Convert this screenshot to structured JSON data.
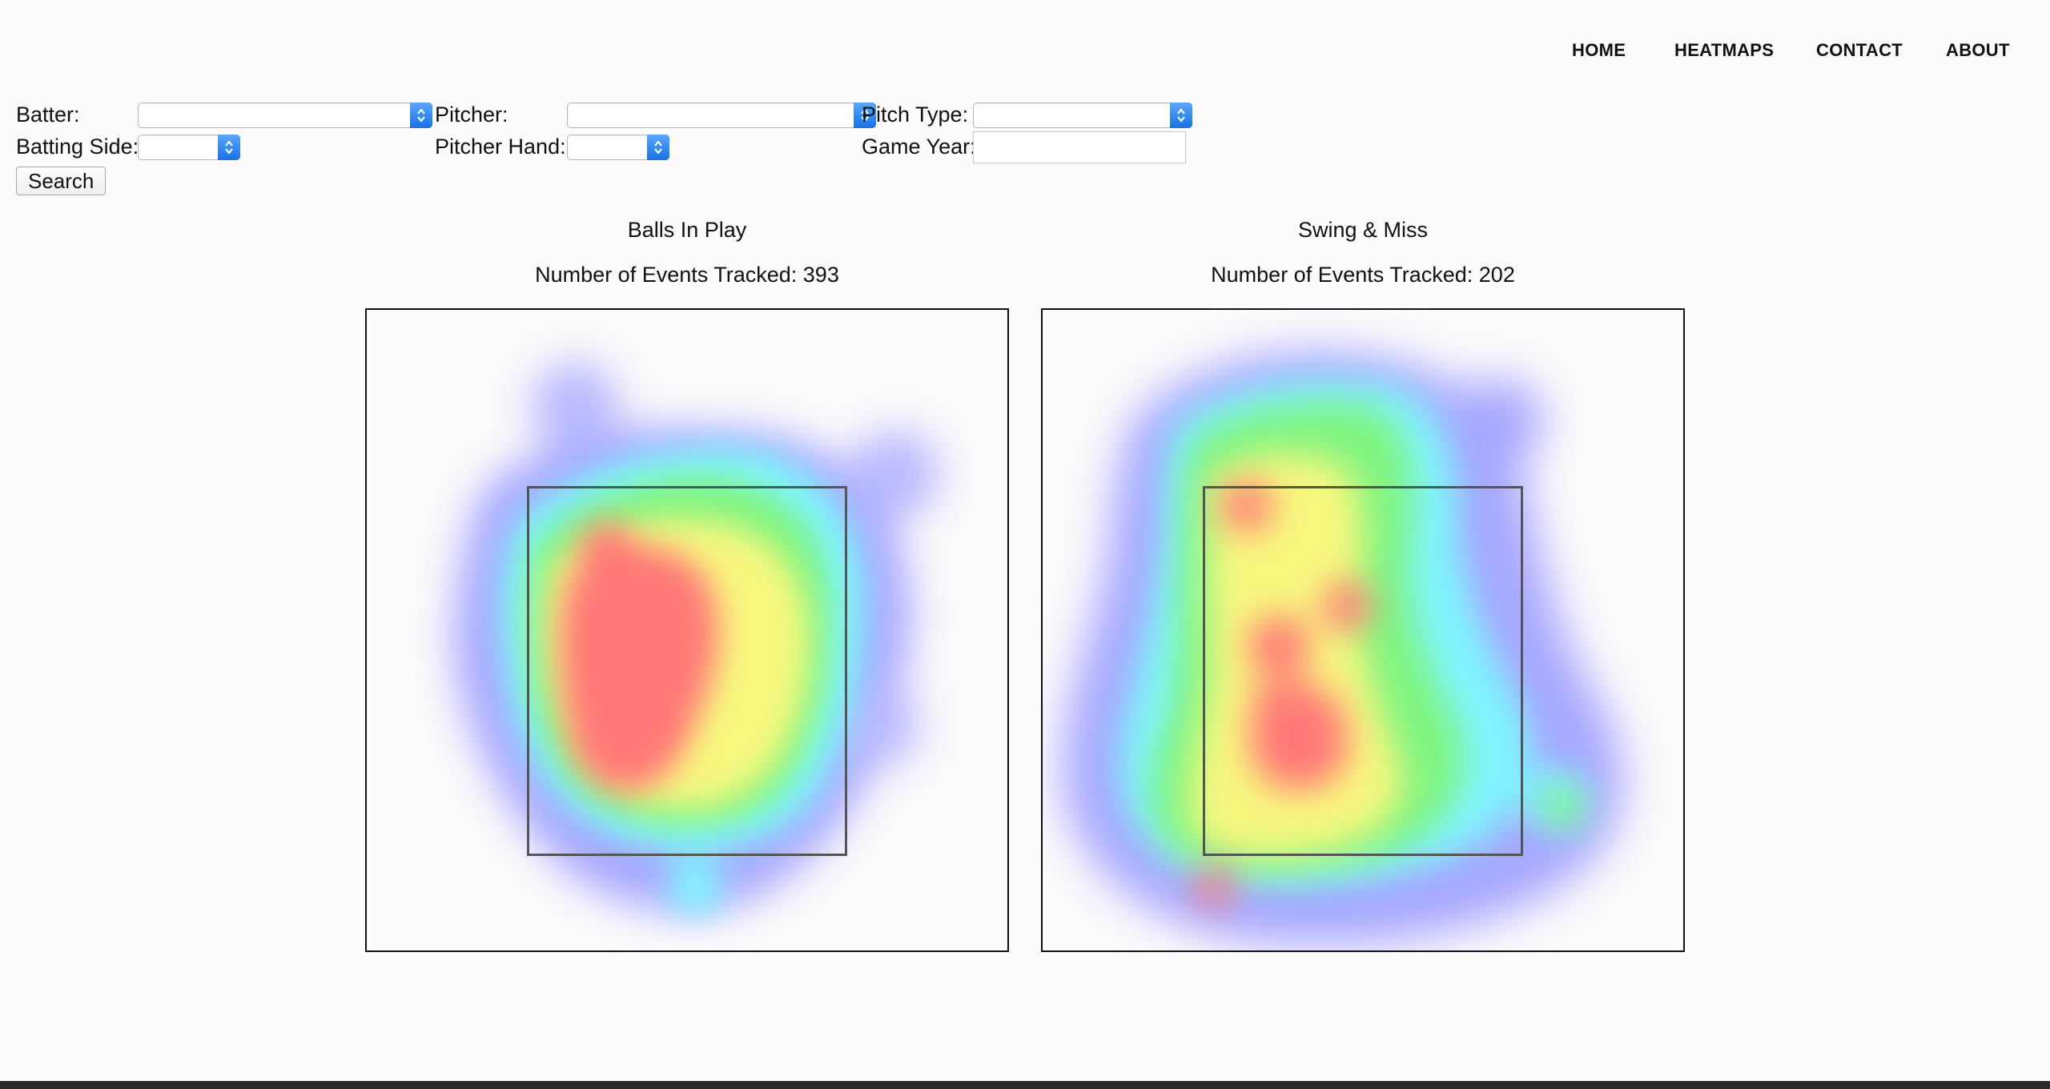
{
  "nav": {
    "items": [
      "HOME",
      "HEATMAPS",
      "CONTACT",
      "ABOUT"
    ]
  },
  "filters": {
    "batter_label": "Batter:",
    "pitcher_label": "Pitcher:",
    "pitch_type_label": "Pitch Type:",
    "batting_side_label": "Batting Side:",
    "pitcher_hand_label": "Pitcher Hand:",
    "game_year_label": "Game Year:",
    "batter_value": "",
    "pitcher_value": "",
    "pitch_type_value": "",
    "batting_side_value": "",
    "pitcher_hand_value": "",
    "game_year_value": "",
    "search_label": "Search"
  },
  "heatmaps": [
    {
      "title": "Balls In Play",
      "events": "Number of Events Tracked: 393"
    },
    {
      "title": "Swing & Miss",
      "events": "Number of Events Tracked: 202"
    }
  ],
  "colors": {
    "heat_low": "#a6a6ff",
    "heat_mid_low": "#7ff5ff",
    "heat_mid": "#7ff57f",
    "heat_mid_high": "#f8f87f",
    "heat_high": "#ff7878"
  }
}
